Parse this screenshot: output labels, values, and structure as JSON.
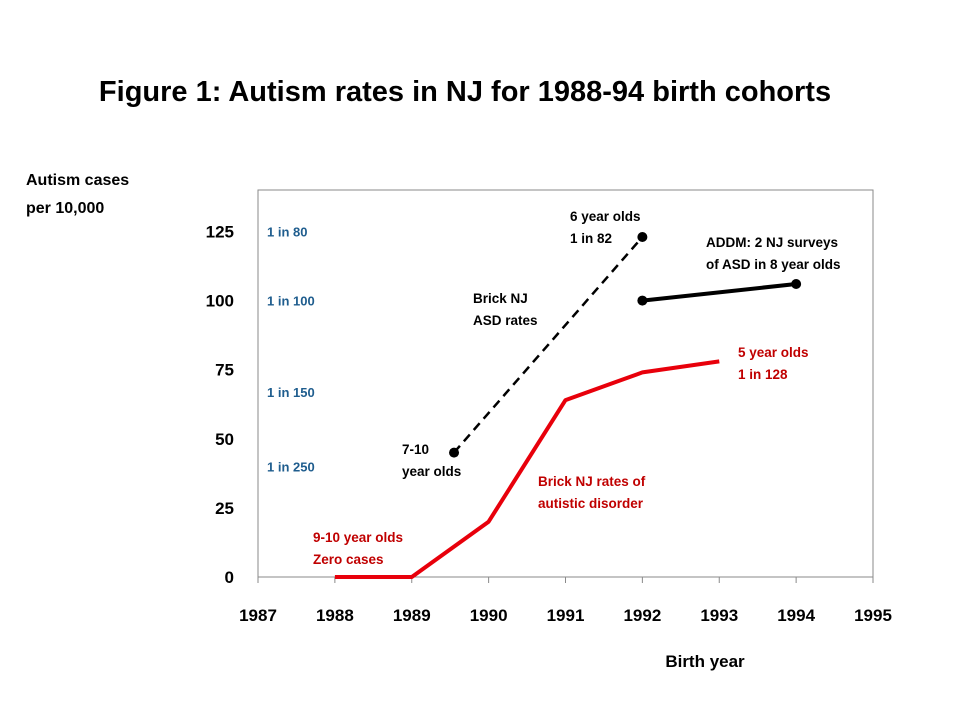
{
  "title": "Figure 1: Autism rates in NJ for 1988-94 birth cohorts",
  "colors": {
    "red_series": "#e8000b",
    "black_series": "#000000",
    "ratio_labels": "#1f5d8e",
    "red_annotations": "#c00000"
  },
  "chart_data": {
    "type": "line",
    "title": "Figure 1: Autism rates in NJ for 1988-94 birth cohorts",
    "ylabel_lines": [
      "Autism cases",
      "per 10,000"
    ],
    "xlabel": "Birth year",
    "xlim": [
      1987,
      1995
    ],
    "ylim": [
      0,
      140
    ],
    "x_ticks": [
      "1987",
      "1988",
      "1989",
      "1990",
      "1991",
      "1992",
      "1993",
      "1994",
      "1995"
    ],
    "y_ticks": [
      "0",
      "25",
      "50",
      "75",
      "100",
      "125"
    ],
    "grid": false,
    "series": [
      {
        "id": "brick_autistic_disorder",
        "color": "#e8000b",
        "style": "solid",
        "markers": false,
        "points": [
          [
            1988,
            0
          ],
          [
            1989,
            0
          ],
          [
            1990,
            20
          ],
          [
            1991,
            64
          ],
          [
            1992,
            74
          ],
          [
            1993,
            78
          ]
        ]
      },
      {
        "id": "brick_asd",
        "color": "#000000",
        "style": "dashed",
        "markers": true,
        "points": [
          [
            1989.55,
            45
          ],
          [
            1992,
            123
          ]
        ]
      },
      {
        "id": "addm_nj",
        "color": "#000000",
        "style": "solid",
        "markers": true,
        "points": [
          [
            1992,
            100
          ],
          [
            1994,
            106
          ]
        ]
      }
    ],
    "ratio_labels": [
      {
        "text": "1 in 80",
        "y": 125
      },
      {
        "text": "1 in 100",
        "y": 100
      },
      {
        "text": "1 in 150",
        "y": 67
      },
      {
        "text": "1 in 250",
        "y": 40
      }
    ],
    "annotations": [
      {
        "lines": [
          "6 year olds",
          "1 in 82"
        ],
        "color": "#000000"
      },
      {
        "lines": [
          "ADDM: 2 NJ surveys",
          "of ASD in 8 year olds"
        ],
        "color": "#000000"
      },
      {
        "lines": [
          "Brick NJ",
          "ASD rates"
        ],
        "color": "#000000"
      },
      {
        "lines": [
          "5 year olds",
          "1 in  128"
        ],
        "color": "#c00000"
      },
      {
        "lines": [
          "7-10",
          "year olds"
        ],
        "color": "#000000"
      },
      {
        "lines": [
          "Brick NJ rates of",
          "autistic disorder"
        ],
        "color": "#c00000"
      },
      {
        "lines": [
          "9-10 year olds",
          "Zero cases"
        ],
        "color": "#c00000"
      }
    ]
  }
}
